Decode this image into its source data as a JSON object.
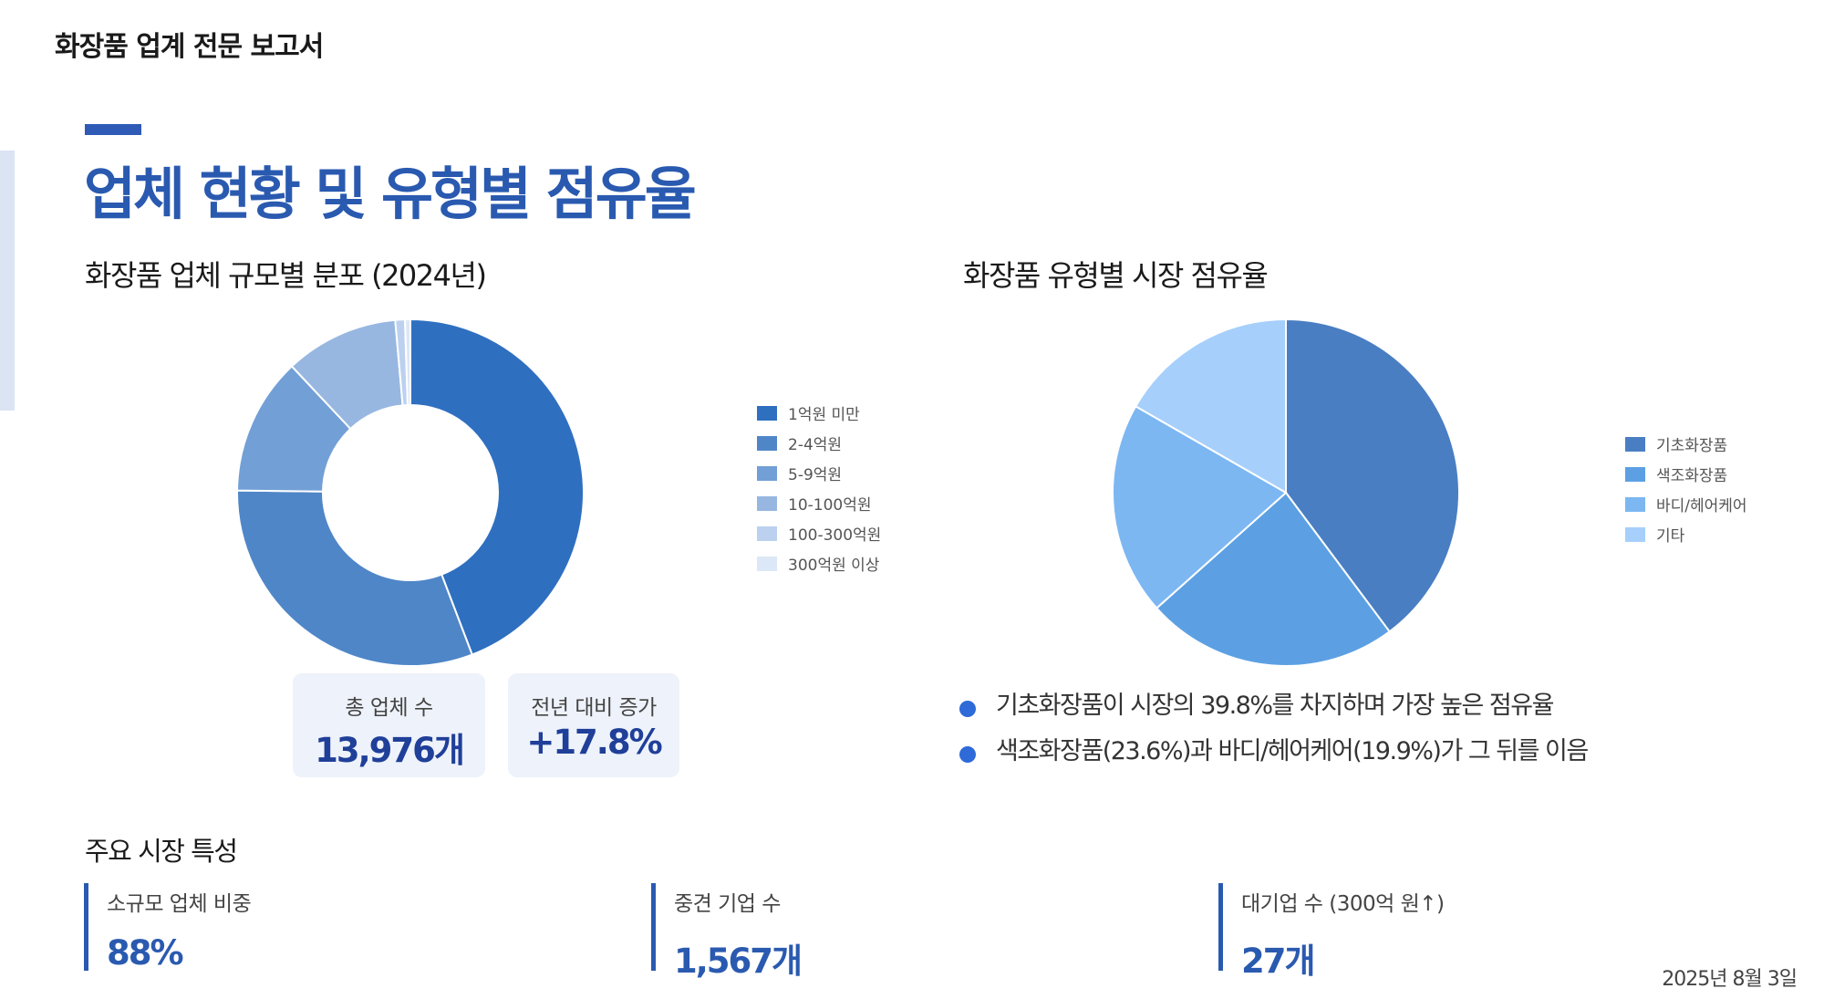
{
  "header": {
    "report_label": "화장품 업계 전문 보고서"
  },
  "page_title": "업체 현황 및 유형별 점유율",
  "left_section_title": "화장품 업체 규모별 분포 (2024년)",
  "right_section_title": "화장품 유형별 시장 점유율",
  "stats": [
    {
      "label": "총 업체 수",
      "value": "13,976개"
    },
    {
      "label": "전년 대비 증가",
      "value": "+17.8%"
    }
  ],
  "bullets": [
    "기초화장품이 시장의 39.8%를 차지하며 가장 높은 점유율",
    "색조화장품(23.6%)과 바디/헤어케어(19.9%)가 그 뒤를 이음"
  ],
  "features_title": "주요 시장 특성",
  "features": [
    {
      "label": "소규모 업체 비중",
      "value": "88%"
    },
    {
      "label": "중견 기업 수",
      "value": "1,567개"
    },
    {
      "label": "대기업 수 (300억 원↑)",
      "value": "27개"
    }
  ],
  "footer_date": "2025년 8월 3일",
  "chart_data": [
    {
      "type": "doughnut",
      "categories": [
        "1억원 미만",
        "2-4억원",
        "5-9억원",
        "10-100억원",
        "100-300억원",
        "300억원 이상"
      ],
      "values": [
        44.2,
        31.0,
        12.8,
        10.6,
        0.9,
        0.5
      ],
      "colors": [
        "#2f6fc0",
        "#4f86c8",
        "#729fd6",
        "#97b7e1",
        "#bcd1ef",
        "#dce7f7"
      ],
      "legend_position": "right"
    },
    {
      "type": "pie",
      "categories": [
        "기초화장품",
        "색조화장품",
        "바디/헤어케어",
        "기타"
      ],
      "values": [
        39.8,
        23.6,
        19.9,
        16.7
      ],
      "colors": [
        "#4a7ec3",
        "#5ca0e3",
        "#7cb7f2",
        "#a6d0fb"
      ],
      "legend_position": "right"
    }
  ]
}
